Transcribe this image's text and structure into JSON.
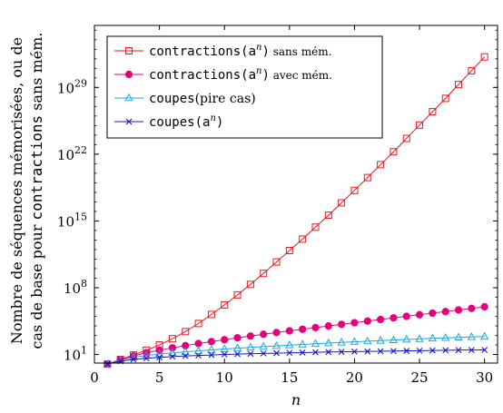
{
  "chart_data": {
    "type": "line",
    "y_scale": "log10",
    "xlabel": "n",
    "ylabel_line1": "Nombre de séquences mémorisées, ou de",
    "ylabel_line2_prefix": "cas de base pour ",
    "ylabel_line2_mono": "contractions",
    "ylabel_line2_suffix": " sans mém.",
    "xlim": [
      0,
      31
    ],
    "ylim_log10": [
      0.1,
      35.5
    ],
    "x_ticks": [
      0,
      5,
      10,
      15,
      20,
      25,
      30
    ],
    "y_ticks": [
      {
        "exp": 1,
        "label_base": "10",
        "label_exp": "1"
      },
      {
        "exp": 8,
        "label_base": "10",
        "label_exp": "8"
      },
      {
        "exp": 15,
        "label_base": "10",
        "label_exp": "15"
      },
      {
        "exp": 22,
        "label_base": "10",
        "label_exp": "22"
      },
      {
        "exp": 29,
        "label_base": "10",
        "label_exp": "29"
      }
    ],
    "legend_position": "top-left",
    "x": [
      1,
      2,
      3,
      4,
      5,
      6,
      7,
      8,
      9,
      10,
      11,
      12,
      13,
      14,
      15,
      16,
      17,
      18,
      19,
      20,
      21,
      22,
      23,
      24,
      25,
      26,
      27,
      28,
      29,
      30
    ],
    "series": [
      {
        "key": "contr_sans",
        "legend_mono": "contractions(a",
        "legend_sup": "n",
        "legend_close": ")",
        "legend_small": " sans mém.",
        "color": "#e8191f",
        "marker": "square-open",
        "log10_values": [
          0.0,
          0.48,
          0.95,
          1.45,
          2.0,
          2.65,
          3.4,
          4.25,
          5.2,
          6.2,
          7.25,
          8.35,
          9.5,
          10.7,
          11.9,
          13.1,
          14.35,
          15.6,
          16.9,
          18.2,
          19.55,
          20.9,
          22.25,
          23.65,
          25.05,
          26.45,
          27.85,
          29.3,
          30.75,
          32.2
        ]
      },
      {
        "key": "contr_avec",
        "legend_mono": "contractions(a",
        "legend_sup": "n",
        "legend_close": ")",
        "legend_small": " avec mém.",
        "color": "#e5007e",
        "marker": "circle-filled",
        "log10_values": [
          0.0,
          0.45,
          0.85,
          1.18,
          1.45,
          1.7,
          1.93,
          2.15,
          2.35,
          2.55,
          2.75,
          2.93,
          3.12,
          3.3,
          3.48,
          3.65,
          3.82,
          3.99,
          4.16,
          4.33,
          4.5,
          4.67,
          4.84,
          5.0,
          5.17,
          5.34,
          5.5,
          5.67,
          5.83,
          6.0
        ]
      },
      {
        "key": "coupes_pire",
        "legend_mono": "coupes",
        "legend_sup": "",
        "legend_close": "",
        "legend_small": "",
        "legend_serif": "(pire cas)",
        "color": "#1ba8df",
        "marker": "triangle-open",
        "log10_values": [
          0.0,
          0.4,
          0.7,
          0.9,
          1.05,
          1.17,
          1.28,
          1.38,
          1.48,
          1.57,
          1.66,
          1.74,
          1.82,
          1.9,
          1.98,
          2.05,
          2.12,
          2.19,
          2.26,
          2.33,
          2.39,
          2.45,
          2.51,
          2.57,
          2.63,
          2.69,
          2.74,
          2.79,
          2.84,
          2.88
        ]
      },
      {
        "key": "coupes_an",
        "legend_mono": "coupes(a",
        "legend_sup": "n",
        "legend_close": ")",
        "legend_small": "",
        "color": "#1616c8",
        "marker": "cross",
        "log10_values": [
          0.0,
          0.3,
          0.48,
          0.6,
          0.7,
          0.78,
          0.85,
          0.9,
          0.95,
          1.0,
          1.04,
          1.08,
          1.11,
          1.14,
          1.17,
          1.2,
          1.23,
          1.26,
          1.28,
          1.3,
          1.32,
          1.34,
          1.36,
          1.38,
          1.4,
          1.42,
          1.44,
          1.46,
          1.47,
          1.48
        ]
      }
    ]
  }
}
